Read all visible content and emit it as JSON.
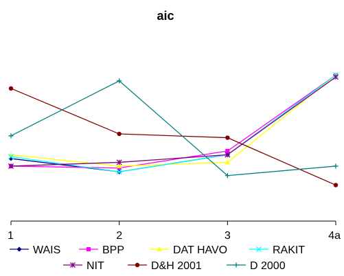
{
  "chart_data": {
    "type": "line",
    "title": "aic",
    "xlabel": "",
    "ylabel": "",
    "categories": [
      "1",
      "2",
      "3",
      "4a"
    ],
    "grid": false,
    "legend_position": "bottom",
    "y_axis_visible": false,
    "ylim": [
      0,
      100
    ],
    "series": [
      {
        "name": "WAIS",
        "color": "#000080",
        "marker": "diamond",
        "values": [
          33,
          26,
          35,
          77
        ]
      },
      {
        "name": "BPP",
        "color": "#ff00ff",
        "marker": "square",
        "values": [
          29,
          28,
          37,
          77
        ]
      },
      {
        "name": "DAT HAVO",
        "color": "#ffff00",
        "marker": "triangle",
        "values": [
          35,
          29,
          31,
          77
        ]
      },
      {
        "name": "RAKIT",
        "color": "#00ffff",
        "marker": "x",
        "values": [
          34,
          26,
          35,
          77
        ]
      },
      {
        "name": "NIT",
        "color": "#800080",
        "marker": "star",
        "values": [
          29,
          31,
          35,
          76
        ]
      },
      {
        "name": "D&H 2001",
        "color": "#800000",
        "marker": "circle",
        "values": [
          70,
          46,
          44,
          19
        ]
      },
      {
        "name": "D 2000",
        "color": "#008080",
        "marker": "plus",
        "values": [
          45,
          74,
          24,
          29
        ]
      }
    ]
  }
}
